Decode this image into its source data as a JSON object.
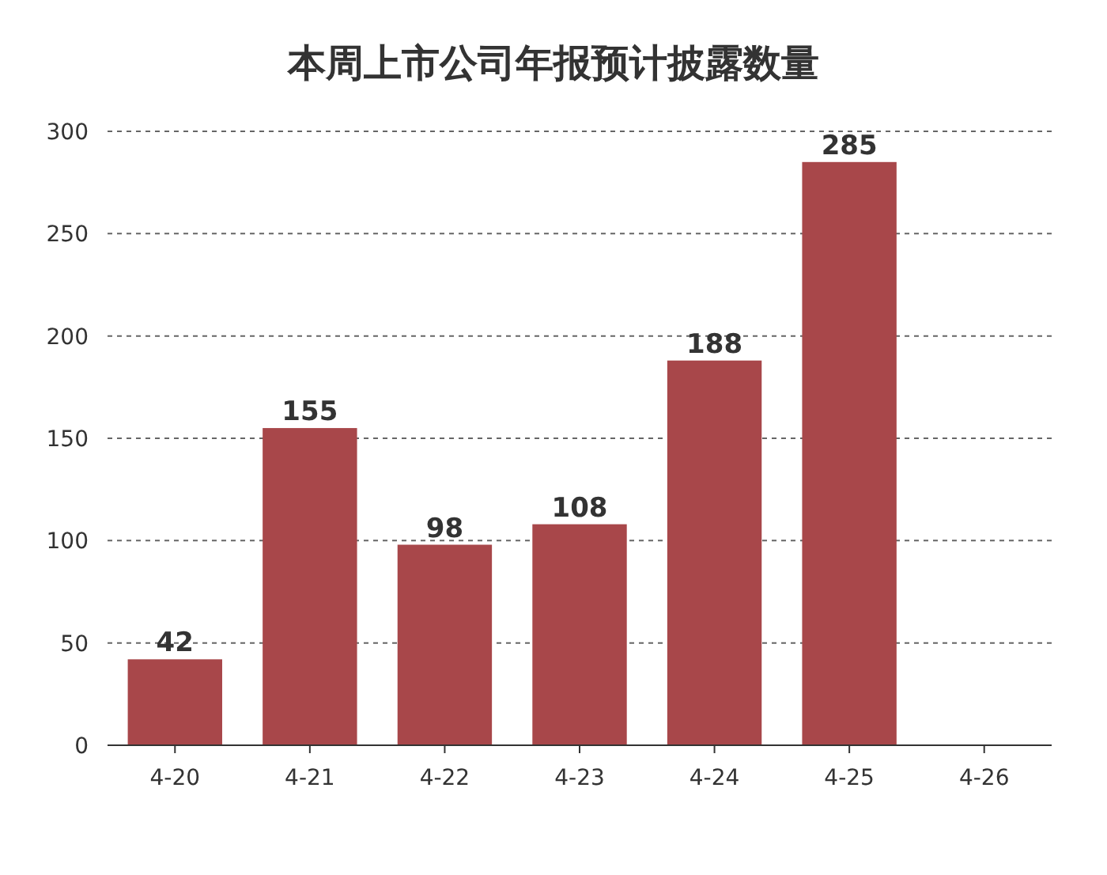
{
  "chart_data": {
    "type": "bar",
    "title": "本周上市公司年报预计披露数量",
    "categories": [
      "4-20",
      "4-21",
      "4-22",
      "4-23",
      "4-24",
      "4-25",
      "4-26"
    ],
    "values": [
      42,
      155,
      98,
      108,
      188,
      285,
      null
    ],
    "color": "#a8474a",
    "ylim": [
      0,
      300
    ],
    "yticks": [
      0,
      50,
      100,
      150,
      200,
      250,
      300
    ],
    "grid": "y",
    "data_labels": true
  }
}
